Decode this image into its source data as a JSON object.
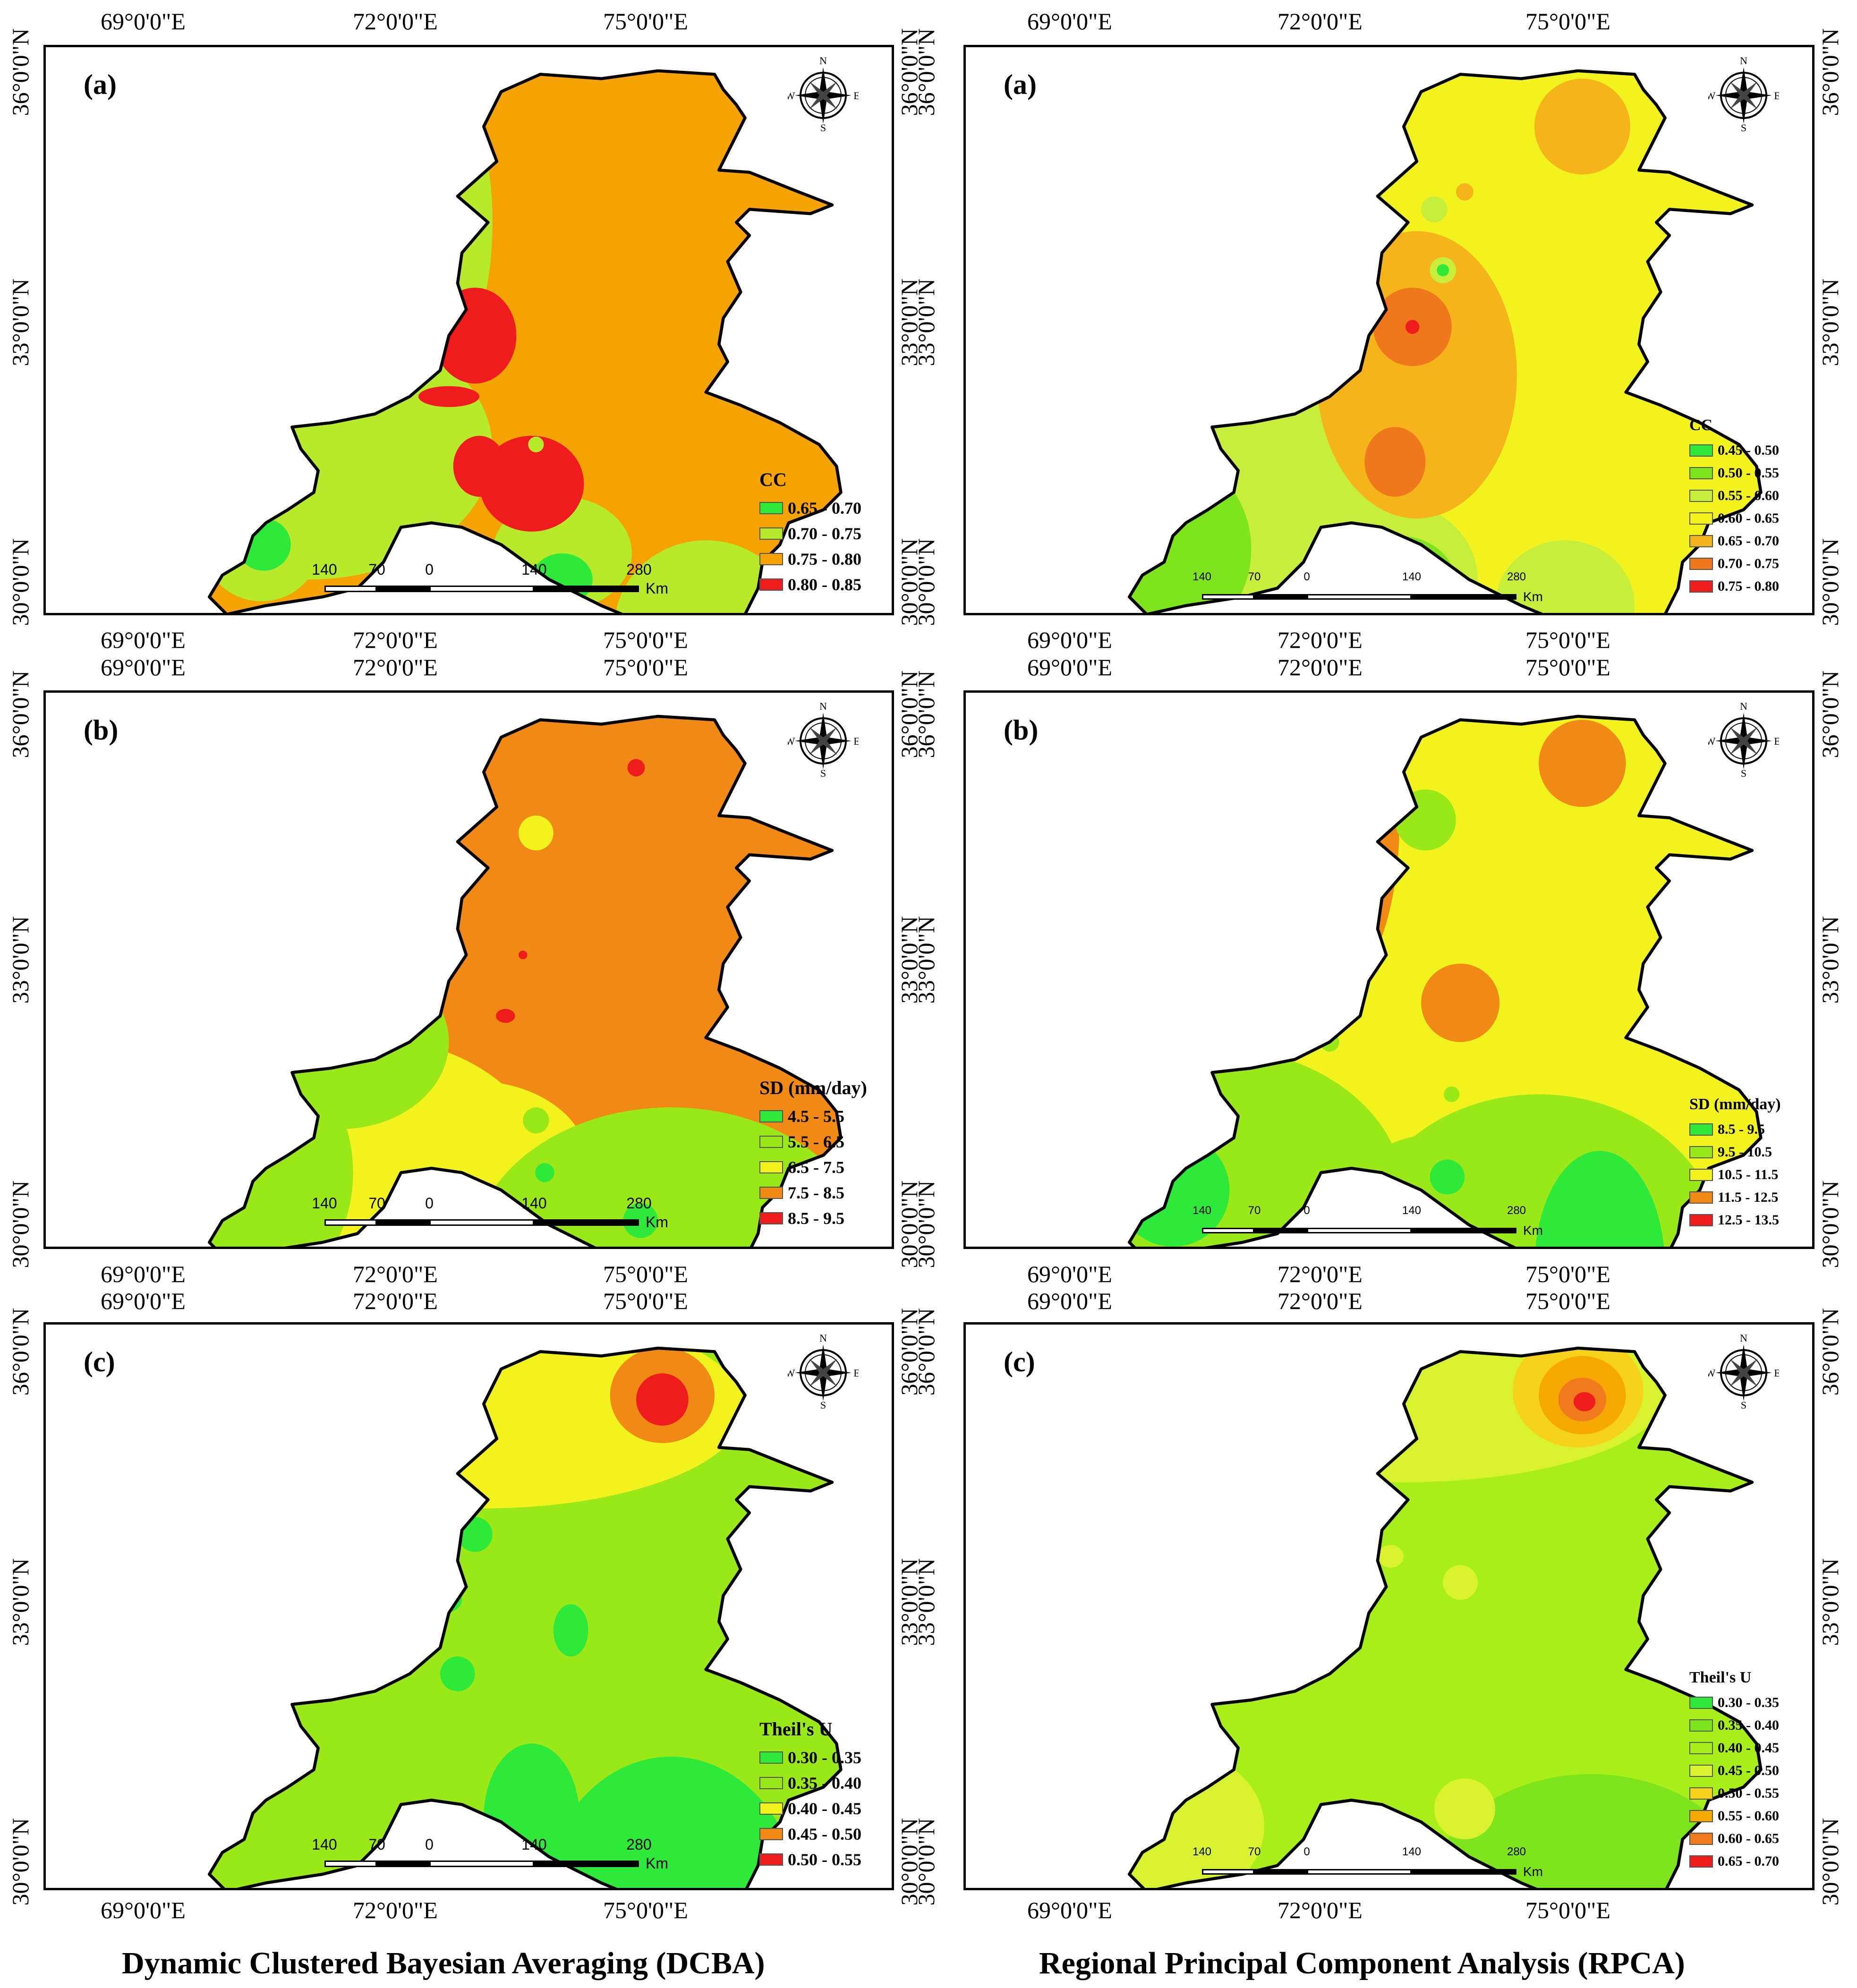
{
  "lon_labels": [
    "69°0'0\"E",
    "72°0'0\"E",
    "75°0'0\"E"
  ],
  "lat_labels": [
    "36°0'0\"N",
    "33°0'0\"N",
    "30°0'0\"N"
  ],
  "compass": {
    "n": "N",
    "s": "S",
    "e": "E",
    "w": "W"
  },
  "scale": {
    "ticks": [
      "140",
      "70",
      "0",
      "140",
      "280"
    ],
    "unit": "Km"
  },
  "colors": {
    "green": "#2ee83a",
    "lightgreen": "#9be818",
    "yellowgreen": "#c8ee3c",
    "yellow": "#f2f21e",
    "gold": "#f7c91a",
    "orange": "#f5a300",
    "darkorange": "#f08a14",
    "red": "#ee1c1c"
  },
  "panels": [
    {
      "id": "dcba-cc",
      "label": "(a)",
      "legend_title": "CC",
      "legend": [
        {
          "range": "0.65 - 0.70",
          "color": "#2ee83a"
        },
        {
          "range": "0.70 - 0.75",
          "color": "#b6ea2a"
        },
        {
          "range": "0.75 - 0.80",
          "color": "#f5a300"
        },
        {
          "range": "0.80 - 0.85",
          "color": "#ee1c1c"
        }
      ]
    },
    {
      "id": "rpca-cc",
      "label": "(a)",
      "legend_title": "CC",
      "legend": [
        {
          "range": "0.45 - 0.50",
          "color": "#2ee83a"
        },
        {
          "range": "0.50 - 0.55",
          "color": "#7ee41c"
        },
        {
          "range": "0.55 - 0.60",
          "color": "#c8ee3c"
        },
        {
          "range": "0.60 - 0.65",
          "color": "#f2f21e"
        },
        {
          "range": "0.65 - 0.70",
          "color": "#f5b41a"
        },
        {
          "range": "0.70 - 0.75",
          "color": "#f0781c"
        },
        {
          "range": "0.75 - 0.80",
          "color": "#ee1c1c"
        }
      ]
    },
    {
      "id": "dcba-sd",
      "label": "(b)",
      "legend_title": "SD (mm/day)",
      "legend": [
        {
          "range": "4.5 - 5.5",
          "color": "#2ee83a"
        },
        {
          "range": "5.5 - 6.5",
          "color": "#9be818"
        },
        {
          "range": "6.5 - 7.5",
          "color": "#f2f21e"
        },
        {
          "range": "7.5 - 8.5",
          "color": "#f08a14"
        },
        {
          "range": "8.5 - 9.5",
          "color": "#ee1c1c"
        }
      ]
    },
    {
      "id": "rpca-sd",
      "label": "(b)",
      "legend_title": "SD (mm/day)",
      "legend": [
        {
          "range": "8.5 - 9.5",
          "color": "#2ee83a"
        },
        {
          "range": "9.5 - 10.5",
          "color": "#9be818"
        },
        {
          "range": "10.5 - 11.5",
          "color": "#f2f21e"
        },
        {
          "range": "11.5 - 12.5",
          "color": "#f08a14"
        },
        {
          "range": "12.5 - 13.5",
          "color": "#ee1c1c"
        }
      ]
    },
    {
      "id": "dcba-tu",
      "label": "(c)",
      "legend_title": "Theil's U",
      "legend": [
        {
          "range": "0.30 - 0.35",
          "color": "#2ee83a"
        },
        {
          "range": "0.35 - 0.40",
          "color": "#9be818"
        },
        {
          "range": "0.40 - 0.45",
          "color": "#f2f21e"
        },
        {
          "range": "0.45 - 0.50",
          "color": "#f08a14"
        },
        {
          "range": "0.50 - 0.55",
          "color": "#ee1c1c"
        }
      ]
    },
    {
      "id": "rpca-tu",
      "label": "(c)",
      "legend_title": "Theil's U",
      "legend": [
        {
          "range": "0.30 - 0.35",
          "color": "#2ee83a"
        },
        {
          "range": "0.35 - 0.40",
          "color": "#7ee41c"
        },
        {
          "range": "0.40 - 0.45",
          "color": "#a8ee18"
        },
        {
          "range": "0.45 - 0.50",
          "color": "#d8f230"
        },
        {
          "range": "0.50 - 0.55",
          "color": "#f7d21a"
        },
        {
          "range": "0.55 - 0.60",
          "color": "#f5a800"
        },
        {
          "range": "0.60 - 0.65",
          "color": "#f07a1c"
        },
        {
          "range": "0.65 - 0.70",
          "color": "#ee1c1c"
        }
      ]
    }
  ],
  "captions": {
    "left": "Dynamic Clustered Bayesian Averaging (DCBA)",
    "right": "Regional Principal Component Analysis (RPCA)"
  }
}
